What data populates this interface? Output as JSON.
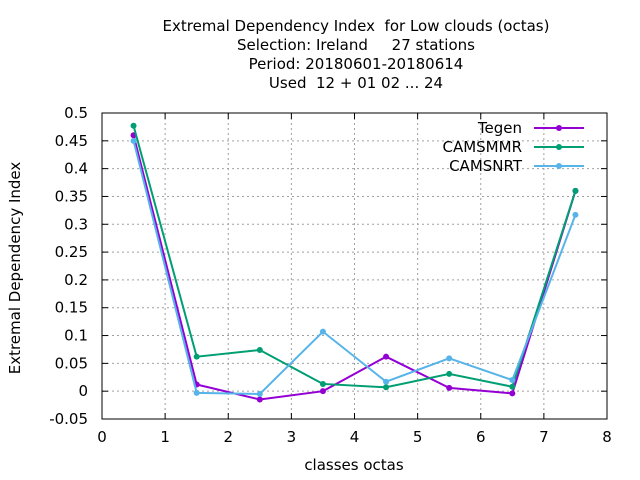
{
  "chart_data": {
    "type": "line",
    "title": [
      "Extremal Dependency Index  for Low clouds (octas)",
      "Selection: Ireland     27 stations",
      "Period: 20180601-20180614",
      "Used  12 + 01 02 ... 24"
    ],
    "xlabel": "classes octas",
    "ylabel": "Extremal Dependency Index",
    "xlim": [
      0,
      8
    ],
    "ylim": [
      -0.05,
      0.5
    ],
    "xticks": [
      "0",
      "1",
      "2",
      "3",
      "4",
      "5",
      "6",
      "7",
      "8"
    ],
    "yticks": [
      "-0.05",
      "0",
      "0.05",
      "0.1",
      "0.15",
      "0.2",
      "0.25",
      "0.3",
      "0.35",
      "0.4",
      "0.45",
      "0.5"
    ],
    "grid": true,
    "legend_position": "top-right",
    "x": [
      0.5,
      1.5,
      2.5,
      3.5,
      4.5,
      5.5,
      6.5,
      7.5
    ],
    "series": [
      {
        "name": "Tegen",
        "color": "#9400d3",
        "values": [
          0.46,
          0.012,
          -0.015,
          0.0,
          0.062,
          0.006,
          -0.004,
          0.36
        ]
      },
      {
        "name": "CAMSMMR",
        "color": "#009e73",
        "values": [
          0.477,
          0.062,
          0.074,
          0.013,
          0.007,
          0.031,
          0.008,
          0.36
        ]
      },
      {
        "name": "CAMSNRT",
        "color": "#56b4e9",
        "values": [
          0.45,
          -0.003,
          -0.005,
          0.107,
          0.017,
          0.059,
          0.02,
          0.317
        ]
      }
    ]
  }
}
